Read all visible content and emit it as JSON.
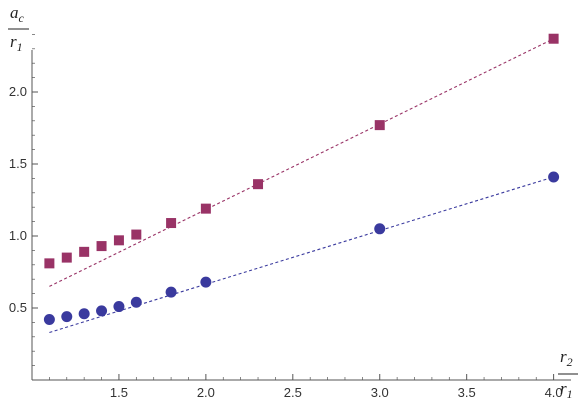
{
  "chart_data": {
    "type": "scatter",
    "title": "",
    "x_axis": {
      "label_numerator": "r",
      "label_numerator_sub": "2",
      "label_denominator": "r",
      "label_denominator_sub": "1",
      "range": [
        1.0,
        4.1
      ],
      "ticks": [
        "1.5",
        "2.0",
        "2.5",
        "3.0",
        "3.5",
        "4.0"
      ],
      "tick_values": [
        1.5,
        2.0,
        2.5,
        3.0,
        3.5,
        4.0
      ]
    },
    "y_axis": {
      "label_numerator": "a",
      "label_numerator_sub": "c",
      "label_denominator": "r",
      "label_denominator_sub": "1",
      "range": [
        0.0,
        2.5
      ],
      "ticks": [
        "0.5",
        "1.0",
        "1.5",
        "2.0"
      ],
      "tick_values": [
        0.5,
        1.0,
        1.5,
        2.0
      ]
    },
    "grid": false,
    "series": [
      {
        "marker": "square",
        "color": "#993366",
        "points": [
          [
            1.1,
            0.81
          ],
          [
            1.2,
            0.85
          ],
          [
            1.3,
            0.89
          ],
          [
            1.4,
            0.93
          ],
          [
            1.5,
            0.97
          ],
          [
            1.6,
            1.01
          ],
          [
            1.8,
            1.09
          ],
          [
            2.0,
            1.19
          ],
          [
            2.3,
            1.36
          ],
          [
            3.0,
            1.77
          ],
          [
            4.0,
            2.37
          ]
        ],
        "fit_line": [
          [
            1.1,
            0.65
          ],
          [
            4.0,
            2.37
          ]
        ]
      },
      {
        "marker": "circle",
        "color": "#3a3a9e",
        "points": [
          [
            1.1,
            0.42
          ],
          [
            1.2,
            0.44
          ],
          [
            1.3,
            0.46
          ],
          [
            1.4,
            0.48
          ],
          [
            1.5,
            0.51
          ],
          [
            1.6,
            0.54
          ],
          [
            1.8,
            0.61
          ],
          [
            2.0,
            0.68
          ],
          [
            3.0,
            1.05
          ],
          [
            4.0,
            1.41
          ]
        ],
        "fit_line": [
          [
            1.1,
            0.33
          ],
          [
            4.0,
            1.41
          ]
        ]
      }
    ]
  }
}
